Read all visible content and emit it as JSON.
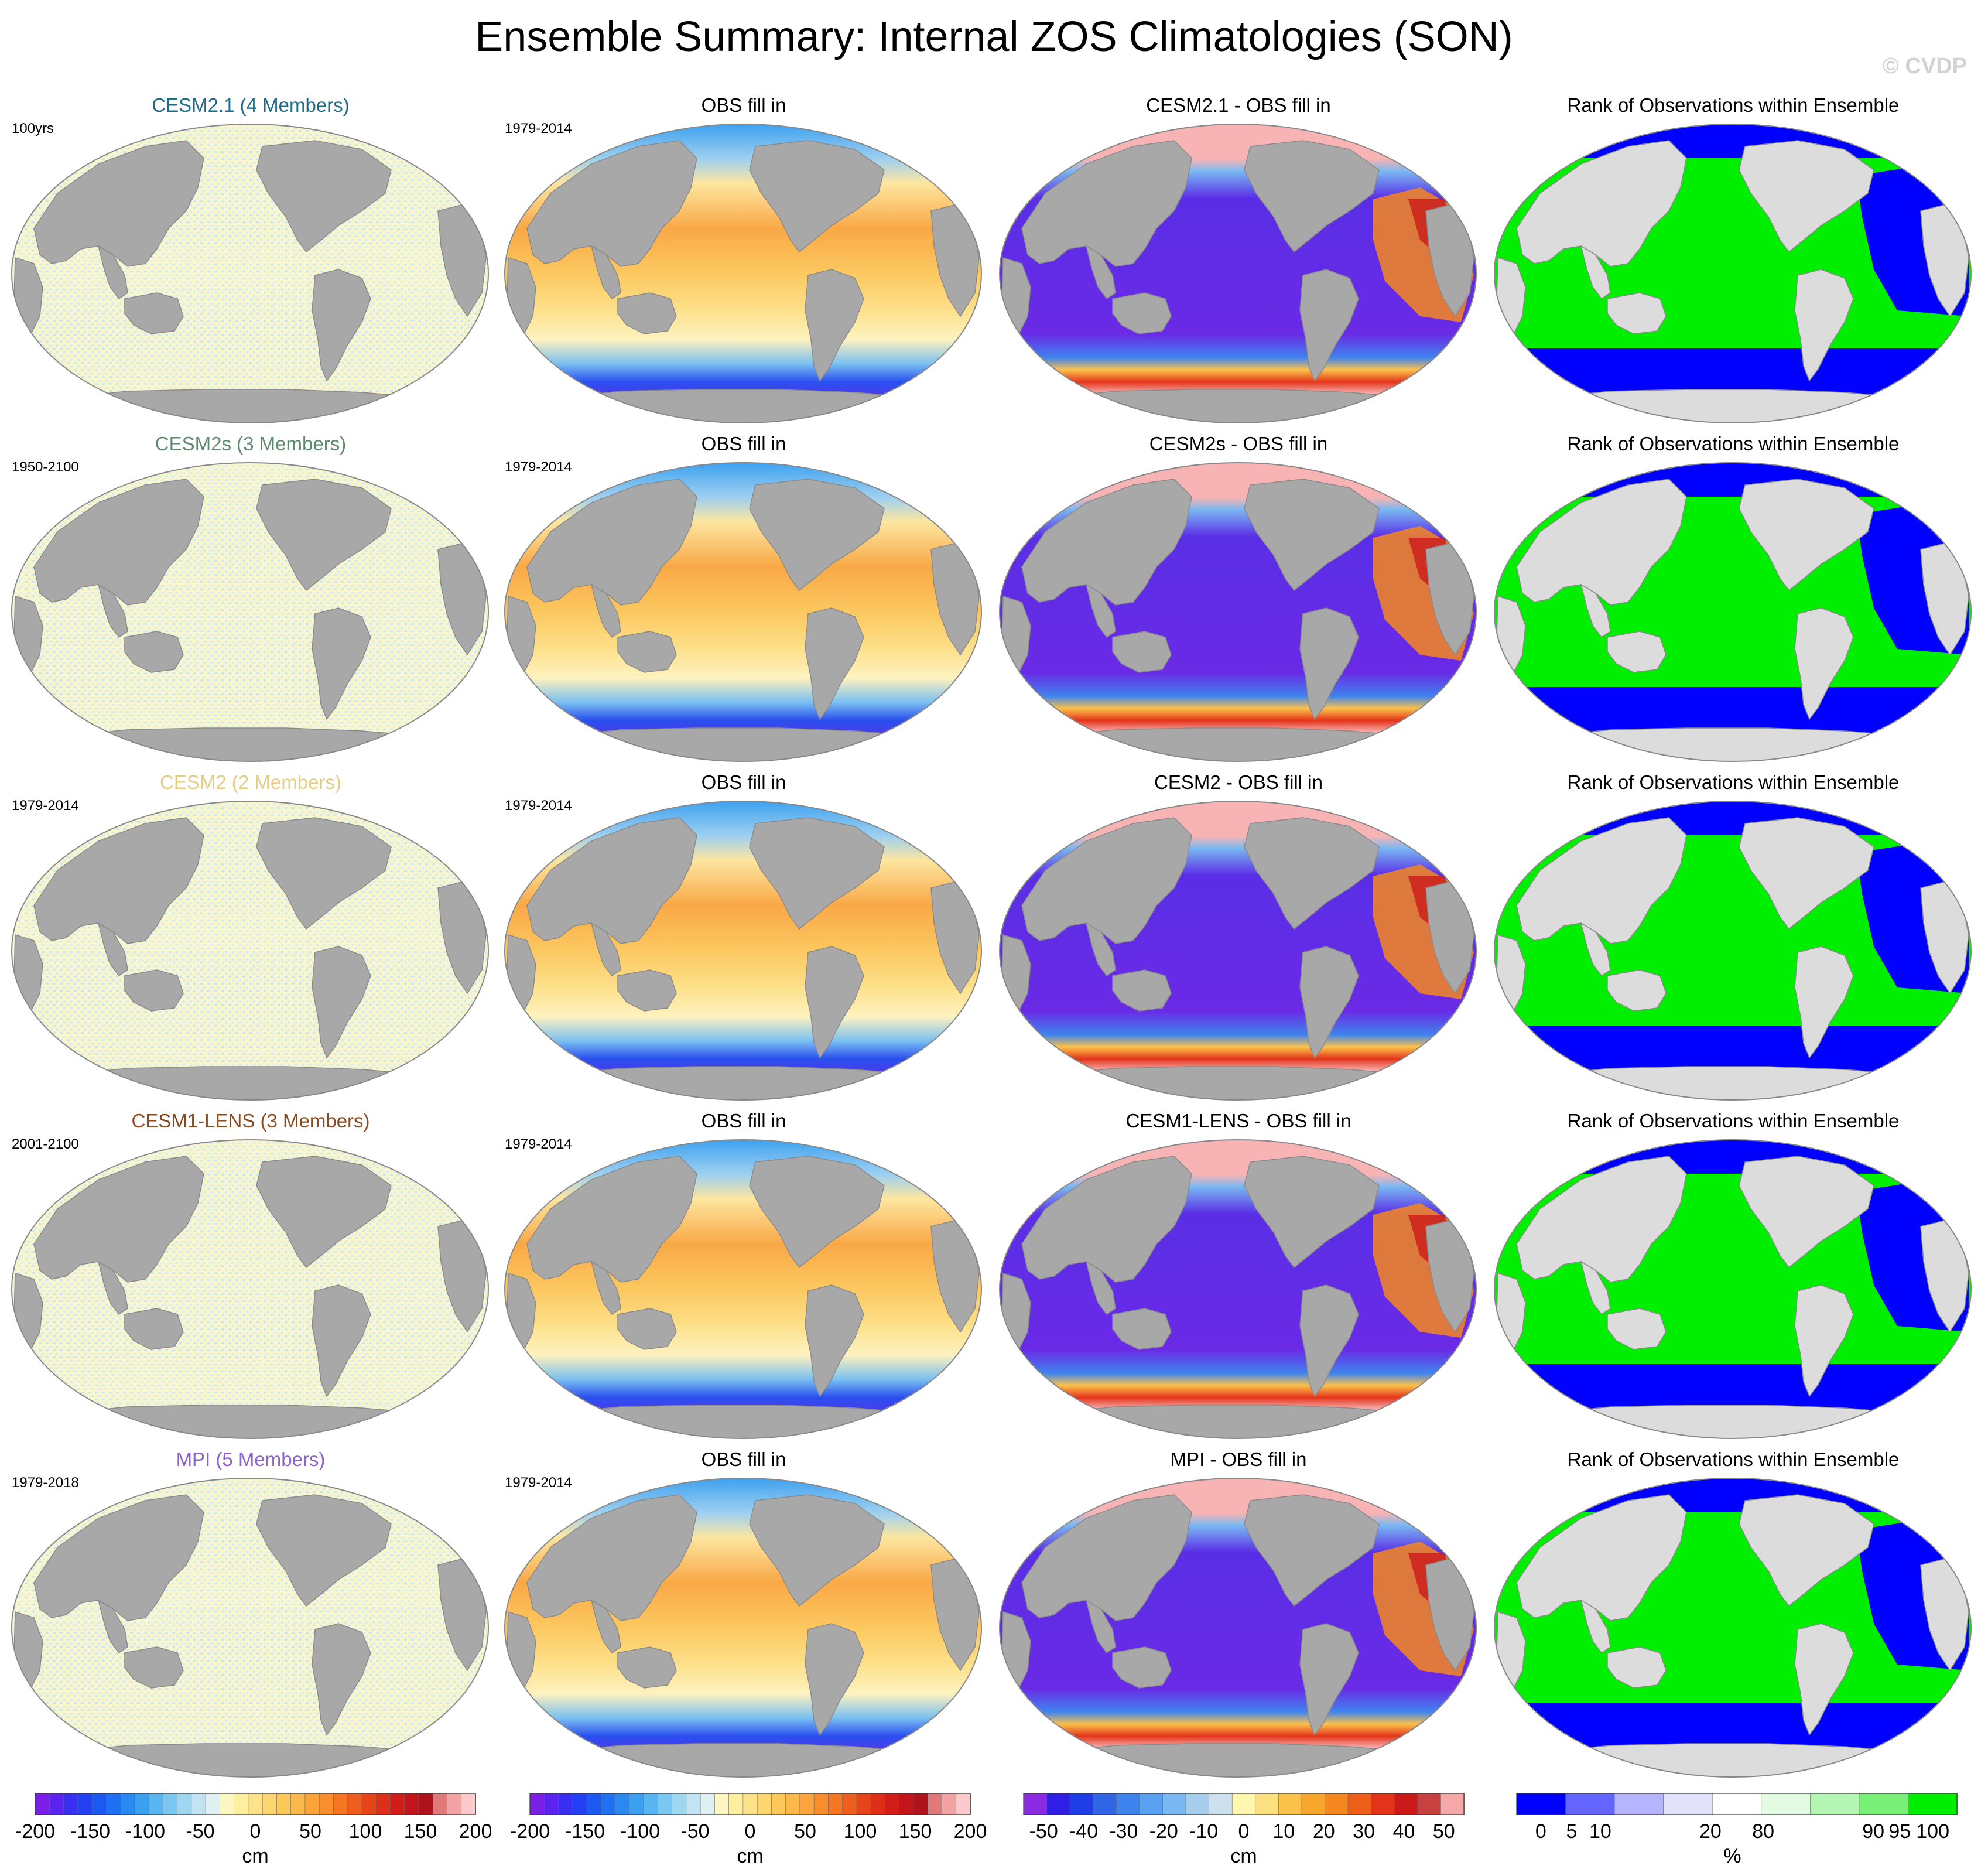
{
  "page": {
    "title": "Ensemble Summary: Internal ZOS Climatologies (SON)",
    "watermark": "© CVDP"
  },
  "chart_data": {
    "type": "heatmap",
    "grid": {
      "rows": 5,
      "columns": 4
    },
    "rows": [
      {
        "ensemble": "CESM2.1 (4 Members)",
        "ensemble_color": "#1f6b87",
        "ensemble_period": "100yrs",
        "obs_title": "OBS fill in",
        "obs_period": "1979-2014",
        "diff_title": "CESM2.1 - OBS fill in",
        "rank_title": "Rank of Observations within Ensemble"
      },
      {
        "ensemble": "CESM2s (3 Members)",
        "ensemble_color": "#5f8a6e",
        "ensemble_period": "1950-2100",
        "obs_title": "OBS fill in",
        "obs_period": "1979-2014",
        "diff_title": "CESM2s - OBS fill in",
        "rank_title": "Rank of Observations within Ensemble"
      },
      {
        "ensemble": "CESM2 (2 Members)",
        "ensemble_color": "#e3cc83",
        "ensemble_period": "1979-2014",
        "obs_title": "OBS fill in",
        "obs_period": "1979-2014",
        "diff_title": "CESM2 - OBS fill in",
        "rank_title": "Rank of Observations within Ensemble"
      },
      {
        "ensemble": "CESM1-LENS (3 Members)",
        "ensemble_color": "#8a4a1f",
        "ensemble_period": "2001-2100",
        "obs_title": "OBS fill in",
        "obs_period": "1979-2014",
        "diff_title": "CESM1-LENS - OBS fill in",
        "rank_title": "Rank of Observations within Ensemble"
      },
      {
        "ensemble": "MPI (5 Members)",
        "ensemble_color": "#8c63c9",
        "ensemble_period": "1979-2018",
        "obs_title": "OBS fill in",
        "obs_period": "1979-2014",
        "diff_title": "MPI - OBS fill in",
        "rank_title": "Rank of Observations within Ensemble"
      }
    ],
    "colorbars": [
      {
        "units": "cm",
        "range": [
          -200,
          200
        ],
        "tick_labels": [
          "-200",
          "-150",
          "-100",
          "-50",
          "0",
          "50",
          "100",
          "150",
          "200"
        ],
        "tick_values": [
          -200,
          -150,
          -100,
          -50,
          0,
          50,
          100,
          150,
          200
        ],
        "colors": [
          "#7a1fe8",
          "#5a24ee",
          "#3a2ef2",
          "#2140f2",
          "#1c58f2",
          "#1f70f2",
          "#2a88f2",
          "#3aa0f2",
          "#57b6f2",
          "#7ac8f2",
          "#9fd6f2",
          "#c2e3f2",
          "#def0f2",
          "#fcf6c0",
          "#fdeea0",
          "#fde28a",
          "#fdd670",
          "#fdc85a",
          "#fcb848",
          "#fba43a",
          "#f98e2e",
          "#f67624",
          "#f05e1e",
          "#e8441a",
          "#de2e18",
          "#d21c18",
          "#c2141a",
          "#ae121c",
          "#e07a7a",
          "#f3a3a3",
          "#fbcaca"
        ]
      },
      {
        "units": "cm",
        "range": [
          -200,
          200
        ],
        "tick_labels": [
          "-200",
          "-150",
          "-100",
          "-50",
          "0",
          "50",
          "100",
          "150",
          "200"
        ],
        "tick_values": [
          -200,
          -150,
          -100,
          -50,
          0,
          50,
          100,
          150,
          200
        ],
        "colors": [
          "#7a1fe8",
          "#5a24ee",
          "#3a2ef2",
          "#2140f2",
          "#1c58f2",
          "#1f70f2",
          "#2a88f2",
          "#3aa0f2",
          "#57b6f2",
          "#7ac8f2",
          "#9fd6f2",
          "#c2e3f2",
          "#def0f2",
          "#fcf6c0",
          "#fdeea0",
          "#fde28a",
          "#fdd670",
          "#fdc85a",
          "#fcb848",
          "#fba43a",
          "#f98e2e",
          "#f67624",
          "#f05e1e",
          "#e8441a",
          "#de2e18",
          "#d21c18",
          "#c2141a",
          "#ae121c",
          "#e07a7a",
          "#f3a3a3",
          "#fbcaca"
        ]
      },
      {
        "units": "cm",
        "range": [
          -55,
          55
        ],
        "tick_labels": [
          "-50",
          "-40",
          "-30",
          "-20",
          "-10",
          "0",
          "10",
          "20",
          "30",
          "40",
          "50"
        ],
        "tick_values": [
          -50,
          -40,
          -30,
          -20,
          -10,
          0,
          10,
          20,
          30,
          40,
          50
        ],
        "colors": [
          "#8a2be2",
          "#2f1fe6",
          "#1f3ee8",
          "#2f66e8",
          "#3f84ee",
          "#5aa0f0",
          "#7ab8f2",
          "#a6cfee",
          "#cce0ee",
          "#fff7b0",
          "#fde080",
          "#fcc24a",
          "#f9a62c",
          "#f5871f",
          "#ee601a",
          "#e3341a",
          "#cc1a1a",
          "#c84040",
          "#f5a8a8"
        ]
      },
      {
        "units": "%",
        "range": [
          0,
          100
        ],
        "tick_labels": [
          "0",
          "5",
          "10",
          "20",
          "80",
          "90",
          "95",
          "100"
        ],
        "tick_values": [
          0,
          5,
          10,
          20,
          80,
          90,
          95,
          100
        ],
        "colors": [
          "#0000ff",
          "#6464ff",
          "#b4b4ff",
          "#e2e2fb",
          "#ffffff",
          "#e2fbe2",
          "#b4f5b4",
          "#78f078",
          "#00ee00"
        ]
      }
    ]
  }
}
